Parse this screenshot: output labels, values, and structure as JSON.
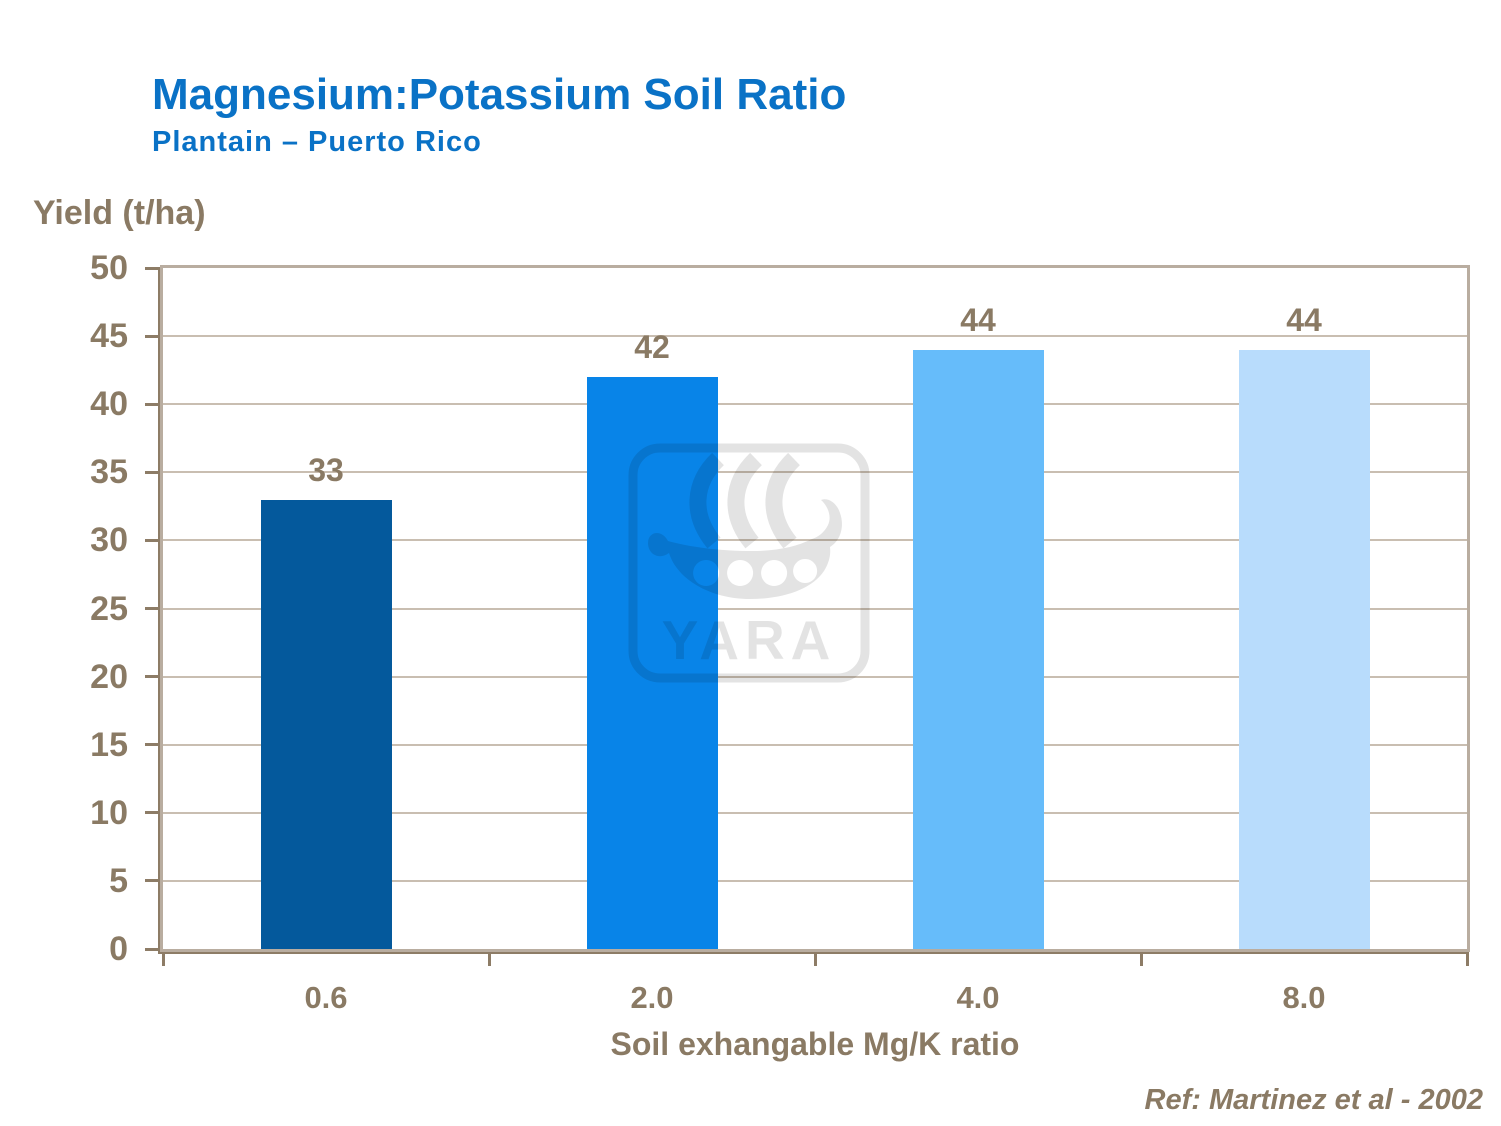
{
  "header": {
    "title": "Magnesium:Potassium Soil Ratio",
    "subtitle": "Plantain – Puerto Rico"
  },
  "chart_data": {
    "type": "bar",
    "title": "Magnesium:Potassium Soil Ratio",
    "subtitle": "Plantain – Puerto Rico",
    "categories": [
      "0.6",
      "2.0",
      "4.0",
      "8.0"
    ],
    "values": [
      33,
      42,
      44,
      44
    ],
    "value_labels": [
      "33",
      "42",
      "44",
      "44"
    ],
    "xlabel": "Soil exhangable Mg/K ratio",
    "ylabel": "Yield (t/ha)",
    "ylim": [
      0,
      50
    ],
    "yticks": [
      0,
      5,
      10,
      15,
      20,
      25,
      30,
      35,
      40,
      45,
      50
    ],
    "grid": true,
    "legend": "none",
    "bar_colors": [
      "#04599c",
      "#0884e8",
      "#66bcfa",
      "#b8dcfc"
    ]
  },
  "palette": {
    "title_blue": "#0a72c6",
    "text_brown": "#8a7a64",
    "axis_tan": "#b9ada0",
    "axis_dark": "#8d7c66",
    "gridline": "#c9beb1"
  },
  "watermark": {
    "brand": "YARA"
  },
  "footer": {
    "reference": "Ref: Martinez et al - 2002"
  }
}
